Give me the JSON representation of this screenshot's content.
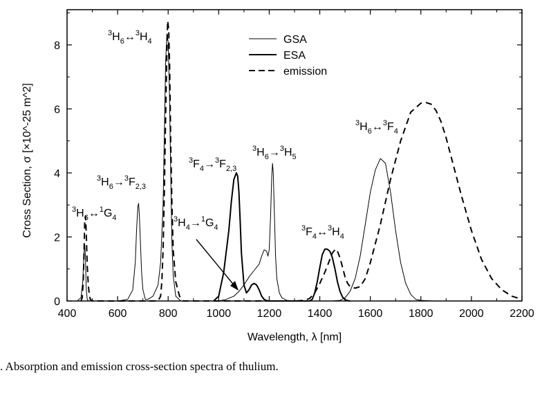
{
  "caption": ". Absorption and emission cross-section spectra of thulium.",
  "chart_data": {
    "type": "line",
    "xlabel": "Wavelength, λ [nm]",
    "ylabel": "Cross Section, σ [×10^-25 m^2]",
    "xlim": [
      400,
      2200
    ],
    "ylim": [
      0,
      9.1
    ],
    "xticks": [
      "400",
      "600",
      "800",
      "1000",
      "1200",
      "1400",
      "1600",
      "1800",
      "2000",
      "2200"
    ],
    "yticks": [
      "0",
      "2",
      "4",
      "6",
      "8"
    ],
    "grid": false,
    "legend": {
      "position": "top-center",
      "entries": [
        {
          "label": "GSA",
          "style": "thin-solid"
        },
        {
          "label": "ESA",
          "style": "thick-solid"
        },
        {
          "label": "emission",
          "style": "dashed"
        }
      ]
    },
    "series": [
      {
        "name": "GSA",
        "style": "thin-solid",
        "x": [
          440,
          455,
          462,
          466,
          468,
          470,
          472,
          474,
          476,
          480,
          485,
          500,
          600,
          640,
          660,
          670,
          675,
          680,
          683,
          686,
          690,
          695,
          700,
          710,
          720,
          740,
          760,
          770,
          780,
          785,
          790,
          795,
          800,
          805,
          810,
          815,
          820,
          830,
          850,
          900,
          950,
          1000,
          1030,
          1060,
          1080,
          1100,
          1120,
          1140,
          1160,
          1170,
          1180,
          1190,
          1195,
          1200,
          1205,
          1210,
          1213,
          1216,
          1220,
          1225,
          1230,
          1240,
          1250,
          1270,
          1300,
          1350,
          1400,
          1450,
          1480,
          1500,
          1520,
          1540,
          1560,
          1580,
          1600,
          1620,
          1640,
          1660,
          1680,
          1700,
          1720,
          1740,
          1760,
          1780,
          1800,
          1850
        ],
        "y": [
          0,
          0.1,
          0.6,
          1.3,
          1.65,
          1.75,
          1.5,
          0.9,
          0.35,
          0.05,
          0,
          0,
          0,
          0.05,
          0.35,
          1.2,
          2.2,
          2.95,
          3.05,
          2.7,
          1.9,
          0.9,
          0.35,
          0.05,
          0.05,
          0.15,
          0.5,
          1.2,
          3.0,
          5.2,
          7.5,
          8.35,
          8.1,
          6.5,
          4.0,
          1.8,
          0.8,
          0.15,
          0,
          0,
          0,
          0,
          0.05,
          0.15,
          0.3,
          0.5,
          0.75,
          0.95,
          1.15,
          1.4,
          1.6,
          1.55,
          1.4,
          1.6,
          2.6,
          3.9,
          4.3,
          4.0,
          2.8,
          1.4,
          0.7,
          0.25,
          0.1,
          0.02,
          0,
          0,
          0,
          0,
          0.02,
          0.1,
          0.3,
          0.7,
          1.4,
          2.4,
          3.4,
          4.1,
          4.45,
          4.3,
          3.4,
          2.2,
          1.2,
          0.55,
          0.2,
          0.05,
          0.02,
          0
        ]
      },
      {
        "name": "ESA",
        "style": "thick-solid",
        "x": [
          980,
          1000,
          1020,
          1040,
          1050,
          1060,
          1070,
          1075,
          1080,
          1085,
          1090,
          1100,
          1110,
          1120,
          1130,
          1140,
          1150,
          1160,
          1170,
          1180,
          1190,
          1200,
          1360,
          1370,
          1380,
          1390,
          1400,
          1410,
          1420,
          1430,
          1440,
          1450,
          1460,
          1470,
          1480,
          1490,
          1500,
          1510,
          1520
        ],
        "y": [
          0,
          0.15,
          0.9,
          2.2,
          3.1,
          3.8,
          4.0,
          3.9,
          3.4,
          2.5,
          1.5,
          0.5,
          0.25,
          0.35,
          0.5,
          0.55,
          0.5,
          0.35,
          0.15,
          0.05,
          0.01,
          0,
          0,
          0.05,
          0.25,
          0.6,
          1.05,
          1.45,
          1.62,
          1.62,
          1.55,
          1.35,
          1.0,
          0.6,
          0.3,
          0.12,
          0.04,
          0.01,
          0
        ]
      },
      {
        "name": "emission",
        "style": "dashed",
        "x": [
          455,
          460,
          464,
          467,
          470,
          473,
          476,
          480,
          484,
          488,
          492,
          500,
          600,
          760,
          770,
          775,
          780,
          785,
          790,
          795,
          798,
          802,
          806,
          810,
          815,
          820,
          830,
          845,
          860,
          1300,
          1340,
          1360,
          1380,
          1400,
          1420,
          1440,
          1450,
          1460,
          1465,
          1470,
          1480,
          1490,
          1500,
          1510,
          1520,
          1540,
          1560,
          1580,
          1600,
          1640,
          1680,
          1720,
          1760,
          1800,
          1820,
          1840,
          1860,
          1880,
          1900,
          1920,
          1960,
          2000,
          2040,
          2080,
          2120,
          2160,
          2200
        ],
        "y": [
          0,
          0.1,
          0.6,
          1.5,
          2.5,
          2.65,
          2.1,
          1.1,
          0.5,
          0.2,
          0.05,
          0,
          0,
          0,
          0.15,
          0.6,
          1.6,
          3.4,
          5.8,
          7.8,
          8.75,
          8.5,
          7.3,
          5.0,
          3.0,
          1.6,
          0.6,
          0.15,
          0,
          0,
          0.02,
          0.08,
          0.25,
          0.55,
          0.9,
          1.3,
          1.5,
          1.6,
          1.62,
          1.55,
          1.35,
          1.05,
          0.75,
          0.55,
          0.45,
          0.4,
          0.45,
          0.7,
          1.2,
          2.4,
          3.8,
          5.0,
          5.9,
          6.18,
          6.2,
          6.15,
          5.95,
          5.6,
          5.1,
          4.5,
          3.3,
          2.2,
          1.3,
          0.7,
          0.35,
          0.15,
          0.05
        ]
      }
    ],
    "annotations": [
      {
        "base": "3",
        "main": "H",
        "sub": "6",
        "op": "↔",
        "base2": "3",
        "main2": "H",
        "sub2": "4"
      },
      {
        "base": "3",
        "main": "H",
        "sub": "6",
        "op": "→",
        "base2": "3",
        "main2": "F",
        "sub2": "2,3"
      },
      {
        "base": "3",
        "main": "H",
        "sub": "6",
        "op": "↔",
        "base2": "1",
        "main2": "G",
        "sub2": "4"
      },
      {
        "base": "3",
        "main": "F",
        "sub": "4",
        "op": "→",
        "base2": "3",
        "main2": "F",
        "sub2": "2,3"
      },
      {
        "base": "3",
        "main": "H",
        "sub": "6",
        "op": "→",
        "base2": "3",
        "main2": "H",
        "sub2": "5"
      },
      {
        "base": "3",
        "main": "H",
        "sub": "4",
        "op": "→",
        "base2": "1",
        "main2": "G",
        "sub2": "4"
      },
      {
        "base": "3",
        "main": "F",
        "sub": "4",
        "op": "↔",
        "base2": "3",
        "main2": "H",
        "sub2": "4"
      },
      {
        "base": "3",
        "main": "H",
        "sub": "6",
        "op": "↔",
        "base2": "3",
        "main2": "F",
        "sub2": "4"
      }
    ]
  }
}
